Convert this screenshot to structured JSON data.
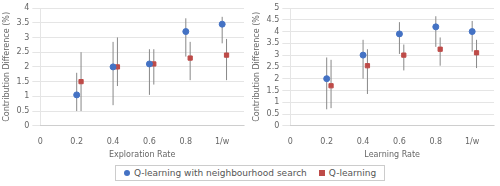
{
  "chart_data": [
    {
      "type": "scatter",
      "xlabel": "Exploration Rate",
      "ylabel": "Contribution Difference (%)",
      "categories": [
        "0",
        "0.2",
        "0.4",
        "0.6",
        "0.8",
        "1/w"
      ],
      "ylim": [
        0,
        4
      ],
      "yticks": [
        0,
        0.5,
        1.0,
        1.5,
        2.0,
        2.5,
        3.0,
        3.5,
        4.0
      ],
      "grid": "y",
      "legend": "bottom",
      "series": [
        {
          "name": "Q-learning with neighbourhood search",
          "color": "#4472C4",
          "marker": "circle",
          "values": [
            null,
            1.05,
            2.0,
            2.1,
            3.2,
            3.45
          ],
          "yerr_lo": [
            null,
            0.55,
            1.3,
            1.05,
            0.85,
            0.65
          ],
          "yerr_hi": [
            null,
            0.75,
            0.85,
            0.5,
            0.45,
            0.25
          ]
        },
        {
          "name": "Q-learning",
          "color": "#BE4B48",
          "marker": "square",
          "values": [
            null,
            1.5,
            2.0,
            2.1,
            2.3,
            2.4
          ],
          "yerr_lo": [
            null,
            1.0,
            0.65,
            0.7,
            0.75,
            0.85
          ],
          "yerr_hi": [
            null,
            1.0,
            1.0,
            0.5,
            0.55,
            0.55
          ]
        }
      ]
    },
    {
      "type": "scatter",
      "xlabel": "Learning Rate",
      "ylabel": "Contribution Difference (%)",
      "categories": [
        "0",
        "0.2",
        "0.4",
        "0.6",
        "0.8",
        "1/w"
      ],
      "ylim": [
        0,
        5
      ],
      "yticks": [
        0,
        0.5,
        1.0,
        1.5,
        2.0,
        2.5,
        3.0,
        3.5,
        4.0,
        4.5,
        5.0
      ],
      "grid": "y",
      "legend": "bottom",
      "series": [
        {
          "name": "Q-learning with neighbourhood search",
          "color": "#4472C4",
          "marker": "circle",
          "values": [
            null,
            2.0,
            3.0,
            3.9,
            4.2,
            4.0
          ],
          "yerr_lo": [
            null,
            1.3,
            1.0,
            0.85,
            0.85,
            0.85
          ],
          "yerr_hi": [
            null,
            0.9,
            0.65,
            0.5,
            0.45,
            0.45
          ]
        },
        {
          "name": "Q-learning",
          "color": "#BE4B48",
          "marker": "square",
          "values": [
            null,
            1.7,
            2.55,
            3.0,
            3.25,
            3.1
          ],
          "yerr_lo": [
            null,
            0.95,
            1.2,
            0.65,
            0.7,
            0.65
          ],
          "yerr_hi": [
            null,
            1.1,
            0.7,
            0.45,
            0.5,
            0.55
          ]
        }
      ]
    }
  ]
}
